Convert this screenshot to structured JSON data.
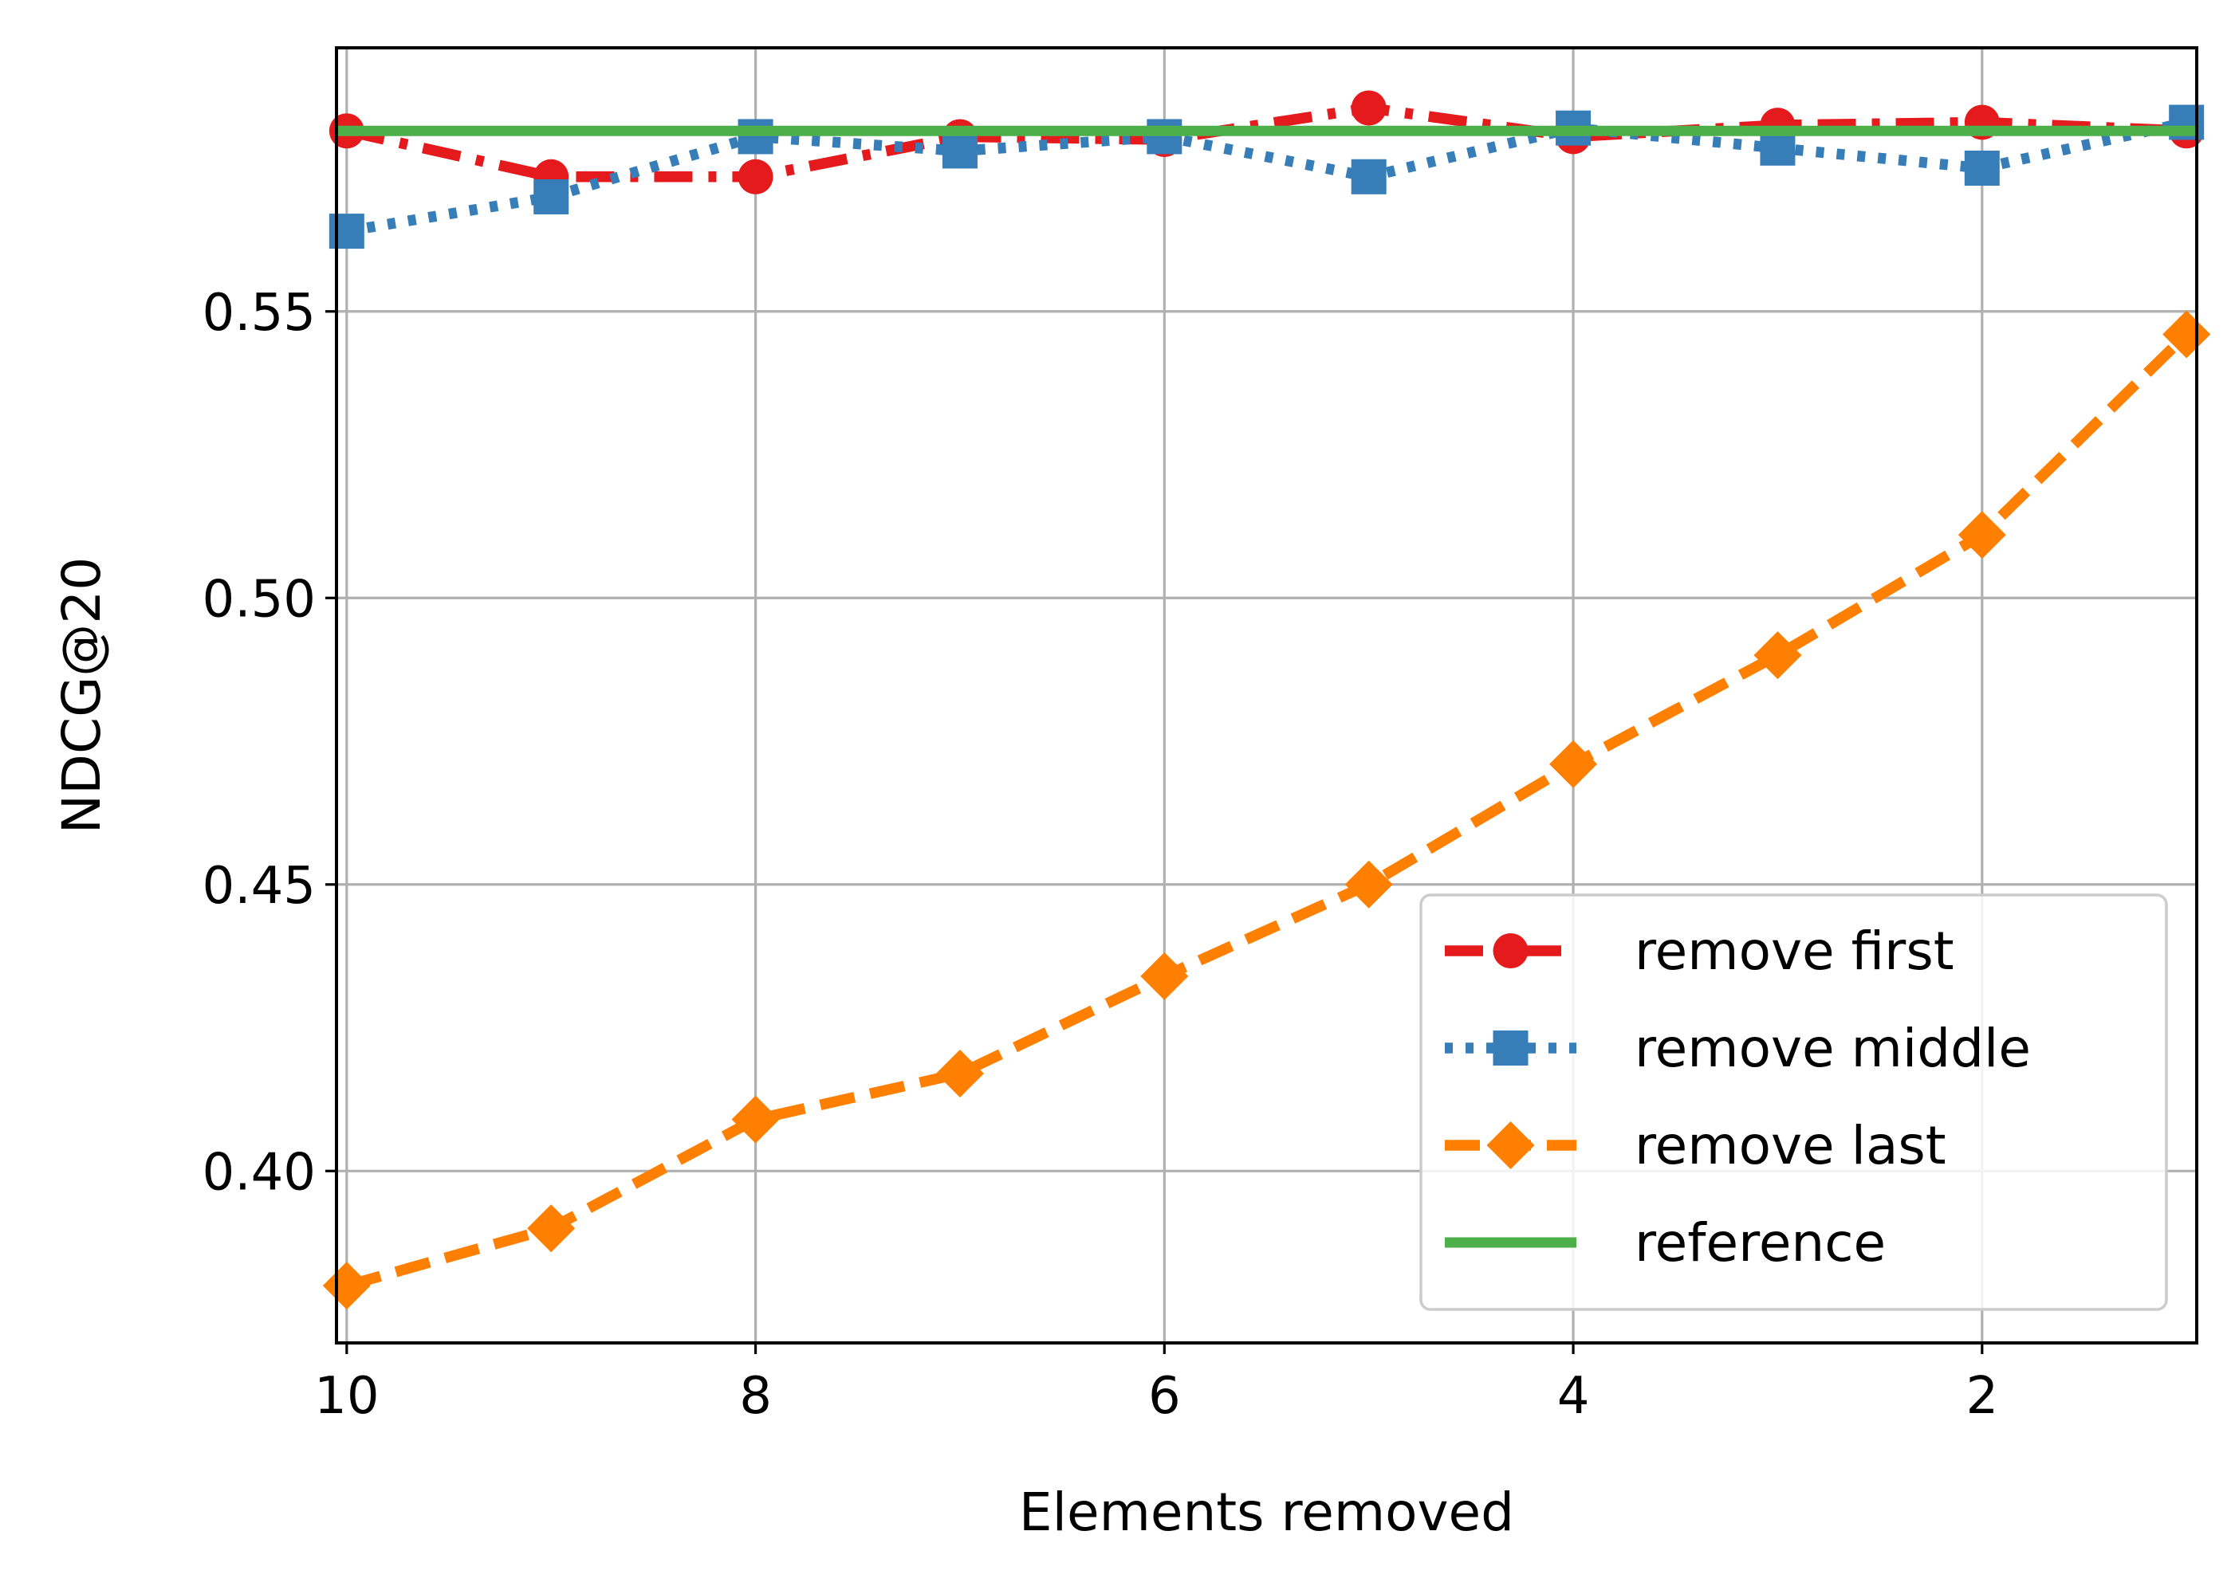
{
  "chart_data": {
    "type": "line",
    "title": "",
    "xlabel": "Elements removed",
    "ylabel": "NDCG@20",
    "xlim": [
      10.05,
      0.95
    ],
    "ylim": [
      0.37,
      0.596
    ],
    "x_inverted": true,
    "xticks": [
      10,
      8,
      6,
      4,
      2
    ],
    "xtick_labels": [
      "10",
      "8",
      "6",
      "4",
      "2"
    ],
    "yticks": [
      0.4,
      0.45,
      0.5,
      0.55
    ],
    "ytick_labels": [
      "0.40",
      "0.45",
      "0.50",
      "0.55"
    ],
    "grid": true,
    "legend_position": "lower right",
    "x": [
      10,
      9,
      8,
      7,
      6,
      5,
      4,
      3,
      2,
      1
    ],
    "series": [
      {
        "name": "remove first",
        "color": "#e41a1c",
        "linestyle": "dashdot",
        "marker": "circle",
        "values": [
          0.5815,
          0.5735,
          0.5735,
          0.5805,
          0.58,
          0.5855,
          0.5805,
          0.5825,
          0.583,
          0.5815
        ]
      },
      {
        "name": "remove middle",
        "color": "#377eb8",
        "linestyle": "dotted",
        "marker": "square",
        "values": [
          0.564,
          0.57,
          0.5805,
          0.578,
          0.5805,
          0.5735,
          0.582,
          0.5785,
          0.575,
          0.583
        ]
      },
      {
        "name": "remove last",
        "color": "#ff7f00",
        "linestyle": "dashed",
        "marker": "diamond",
        "values": [
          0.38,
          0.39,
          0.409,
          0.417,
          0.434,
          0.45,
          0.471,
          0.49,
          0.511,
          0.546
        ]
      },
      {
        "name": "reference",
        "color": "#4daf4a",
        "linestyle": "solid",
        "marker": "none",
        "values": [
          0.5815,
          0.5815,
          0.5815,
          0.5815,
          0.5815,
          0.5815,
          0.5815,
          0.5815,
          0.5815,
          0.5815
        ]
      }
    ]
  }
}
